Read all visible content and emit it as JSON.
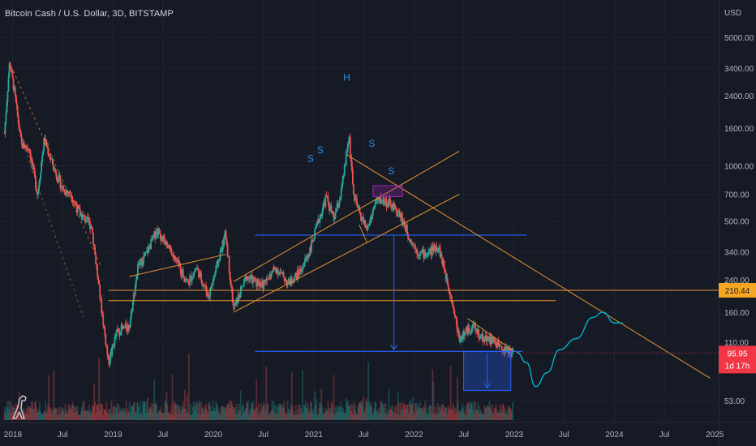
{
  "header": {
    "title": "Bitcoin Cash / U.S. Dollar, 3D, BITSTAMP"
  },
  "price_axis": {
    "currency": "USD",
    "ticks": [
      "5000.00",
      "3400.00",
      "2400.00",
      "1600.00",
      "1000.00",
      "700.00",
      "500.00",
      "340.00",
      "240.00",
      "160.00",
      "110.00",
      "53.00"
    ],
    "tick_values": [
      5000,
      3400,
      2400,
      1600,
      1000,
      700,
      500,
      340,
      240,
      160,
      110,
      53
    ]
  },
  "time_axis": {
    "ticks": [
      "2018",
      "Jul",
      "2019",
      "Jul",
      "2020",
      "Jul",
      "2021",
      "Jul",
      "2022",
      "Jul",
      "2023",
      "Jul",
      "2024",
      "Jul",
      "2025"
    ]
  },
  "badges": {
    "level": {
      "label": "210.44",
      "value": 210.44,
      "color": "#f5a623"
    },
    "last": {
      "label": "95.95",
      "value": 95.95,
      "countdown": "1d 17h",
      "color": "#f23645"
    }
  },
  "annotations": {
    "head": "H",
    "shoulders": [
      "S",
      "S",
      "S",
      "S"
    ]
  },
  "colors": {
    "background": "#161a25",
    "up": "#26a69a",
    "down": "#ef5350",
    "trend": "#e6952e",
    "level_line": "#2962ff",
    "projection": "#00bcd4",
    "zone": "#9c27b0"
  },
  "chart_data": {
    "type": "candlestick",
    "title": "Bitcoin Cash / U.S. Dollar, 3D, BITSTAMP",
    "y_scale": "log",
    "ylim": [
      45,
      6500
    ],
    "xlim": [
      "2017-11-15",
      "2025-01-15"
    ],
    "close_series": [
      [
        "2017-12-01",
        1500
      ],
      [
        "2017-12-20",
        3700
      ],
      [
        "2018-01-05",
        2600
      ],
      [
        "2018-02-01",
        1300
      ],
      [
        "2018-03-01",
        1250
      ],
      [
        "2018-04-01",
        700
      ],
      [
        "2018-04-25",
        1400
      ],
      [
        "2018-06-01",
        950
      ],
      [
        "2018-07-01",
        750
      ],
      [
        "2018-08-01",
        700
      ],
      [
        "2018-09-01",
        550
      ],
      [
        "2018-10-15",
        470
      ],
      [
        "2018-11-15",
        190
      ],
      [
        "2018-12-15",
        85
      ],
      [
        "2019-01-15",
        125
      ],
      [
        "2019-03-01",
        135
      ],
      [
        "2019-04-01",
        280
      ],
      [
        "2019-05-01",
        330
      ],
      [
        "2019-06-10",
        450
      ],
      [
        "2019-07-01",
        400
      ],
      [
        "2019-08-15",
        310
      ],
      [
        "2019-10-01",
        230
      ],
      [
        "2019-11-01",
        280
      ],
      [
        "2019-12-15",
        195
      ],
      [
        "2020-02-15",
        430
      ],
      [
        "2020-03-15",
        165
      ],
      [
        "2020-05-01",
        250
      ],
      [
        "2020-07-01",
        225
      ],
      [
        "2020-08-15",
        280
      ],
      [
        "2020-10-01",
        230
      ],
      [
        "2020-11-15",
        270
      ],
      [
        "2020-12-15",
        340
      ],
      [
        "2021-01-15",
        480
      ],
      [
        "2021-02-15",
        680
      ],
      [
        "2021-03-15",
        510
      ],
      [
        "2021-04-10",
        700
      ],
      [
        "2021-05-10",
        1480
      ],
      [
        "2021-05-25",
        700
      ],
      [
        "2021-06-15",
        560
      ],
      [
        "2021-07-15",
        450
      ],
      [
        "2021-08-15",
        640
      ],
      [
        "2021-09-10",
        650
      ],
      [
        "2021-10-10",
        610
      ],
      [
        "2021-11-15",
        530
      ],
      [
        "2021-12-15",
        410
      ],
      [
        "2022-01-15",
        340
      ],
      [
        "2022-02-15",
        330
      ],
      [
        "2022-03-30",
        370
      ],
      [
        "2022-05-15",
        200
      ],
      [
        "2022-06-15",
        115
      ],
      [
        "2022-08-01",
        135
      ],
      [
        "2022-09-01",
        118
      ],
      [
        "2022-10-15",
        112
      ],
      [
        "2022-11-10",
        104
      ],
      [
        "2022-12-10",
        98
      ],
      [
        "2022-12-28",
        95.95
      ]
    ],
    "horizontal_levels": [
      {
        "name": "",
        "value": 420,
        "from": "2020-06-01",
        "to": "2023-02-15"
      },
      {
        "name": "",
        "value": 210.44,
        "from": "2018-12-15",
        "to": "2025-01-15"
      },
      {
        "name": "",
        "value": 185,
        "from": "2018-12-15",
        "to": "2023-06-01"
      },
      {
        "name": "",
        "value": 98,
        "from": "2020-06-01",
        "to": "2023-02-01"
      }
    ],
    "projection": [
      [
        "2023-01-10",
        97
      ],
      [
        "2023-02-15",
        85
      ],
      [
        "2023-03-20",
        63
      ],
      [
        "2023-05-01",
        75
      ],
      [
        "2023-06-15",
        100
      ],
      [
        "2023-08-15",
        115
      ],
      [
        "2023-10-15",
        150
      ],
      [
        "2023-11-20",
        160
      ],
      [
        "2024-01-01",
        140
      ],
      [
        "2024-02-01",
        140
      ]
    ],
    "last_price": 95.95
  }
}
